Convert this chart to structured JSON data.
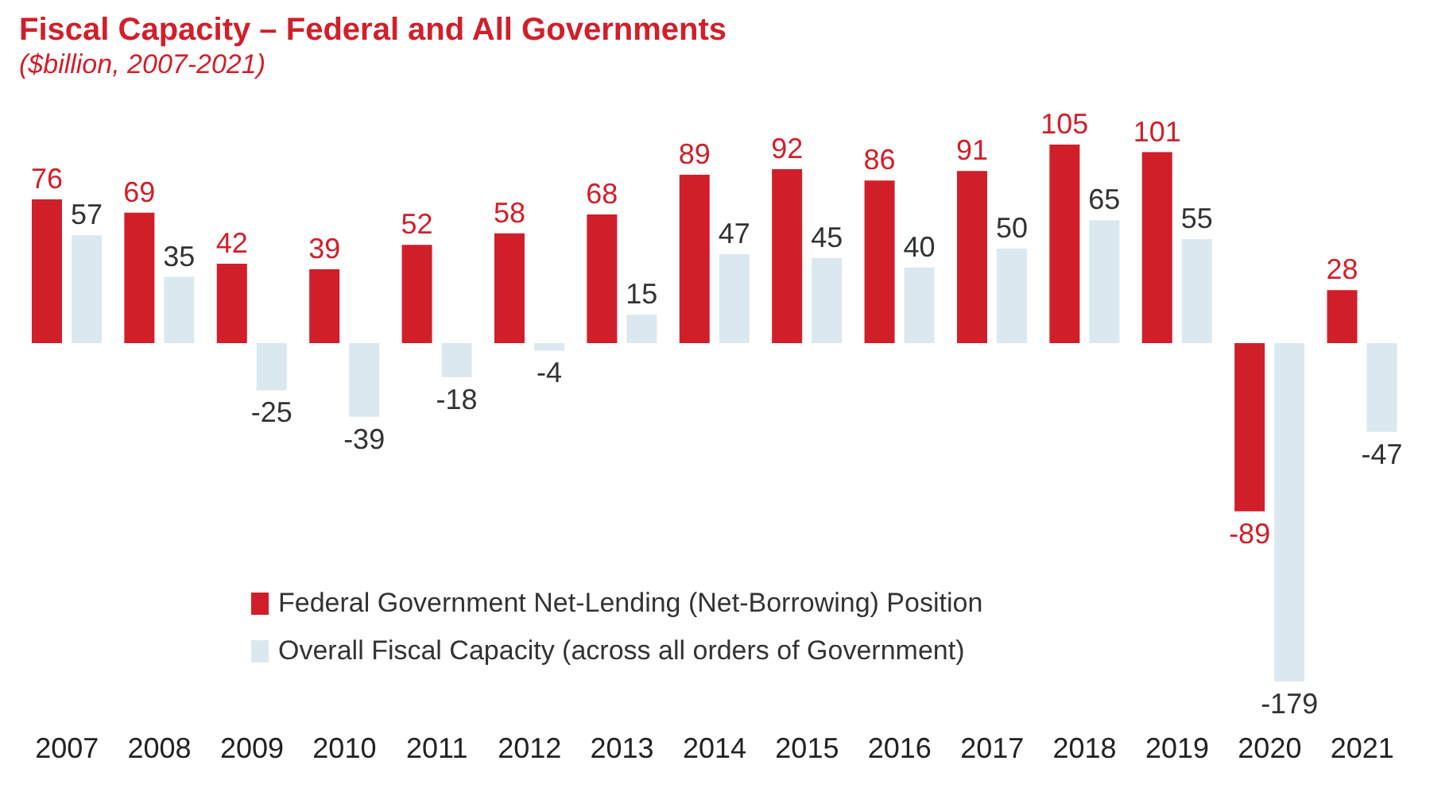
{
  "chart_data": {
    "type": "bar",
    "title": "Fiscal Capacity – Federal and All Governments",
    "subtitle": "($billion, 2007-2021)",
    "categories": [
      "2007",
      "2008",
      "2009",
      "2010",
      "2011",
      "2012",
      "2013",
      "2014",
      "2015",
      "2016",
      "2017",
      "2018",
      "2019",
      "2020",
      "2021"
    ],
    "series": [
      {
        "name": "Federal Government Net-Lending (Net-Borrowing) Position",
        "color": "#d11f2a",
        "values": [
          76,
          69,
          42,
          39,
          52,
          58,
          68,
          89,
          92,
          86,
          91,
          105,
          101,
          -89,
          28
        ]
      },
      {
        "name": "Overall Fiscal Capacity (across all orders of Government)",
        "color": "#dbe8ef",
        "values": [
          57,
          35,
          -25,
          -39,
          -18,
          -4,
          15,
          47,
          45,
          40,
          50,
          65,
          55,
          -179,
          -47
        ]
      }
    ],
    "data_labels": true,
    "legend": "bottom",
    "grid": false
  }
}
